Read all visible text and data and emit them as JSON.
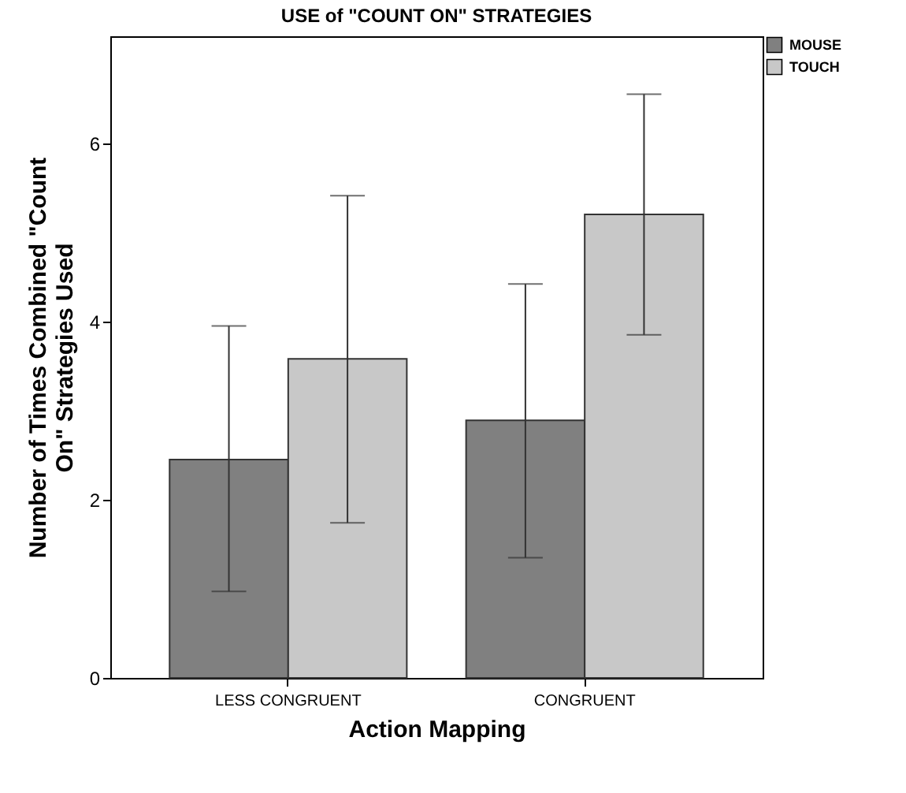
{
  "chart_data": {
    "type": "bar",
    "title": "USE of \"COUNT ON\" STRATEGIES",
    "xlabel": "Action Mapping",
    "ylabel": "Number of Times Combined \"Count On\" Strategies Used",
    "categories": [
      "LESS CONGRUENT",
      "CONGRUENT"
    ],
    "series": [
      {
        "name": "MOUSE",
        "color": "#808080",
        "values": [
          2.45,
          2.89
        ],
        "errors": [
          [
            0.97,
            3.95
          ],
          [
            1.35,
            4.42
          ]
        ]
      },
      {
        "name": "TOUCH",
        "color": "#c8c8c8",
        "values": [
          3.58,
          5.2
        ],
        "errors": [
          [
            1.74,
            5.41
          ],
          [
            3.85,
            6.55
          ]
        ]
      }
    ],
    "ylim": [
      0,
      7.2
    ],
    "yticks": [
      0,
      2,
      4,
      6
    ],
    "grid": false,
    "legend": "top right"
  }
}
